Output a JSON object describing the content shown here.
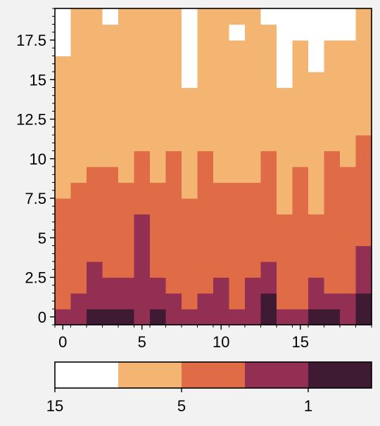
{
  "chart_data": {
    "type": "heatmap",
    "title": "",
    "xlabel": "",
    "ylabel": "",
    "xlim": [
      -0.5,
      19.5
    ],
    "ylim": [
      -0.5,
      19.5
    ],
    "x_ticks": [
      "0",
      "5",
      "10",
      "15"
    ],
    "y_ticks": [
      "0",
      "2.5",
      "5",
      "7.5",
      "10",
      "12.5",
      "15",
      "17.5"
    ],
    "level_colors": [
      "#3f1b33",
      "#922f53",
      "#df6b47",
      "#f4b572",
      "#ffffff"
    ],
    "colorbar": {
      "orientation": "horizontal",
      "segment_colors": [
        "#ffffff",
        "#f4b572",
        "#df6b47",
        "#922f53",
        "#3f1b33"
      ],
      "tick_labels": [
        "15",
        "5",
        "1"
      ]
    },
    "column_boundaries": [
      {
        "x": 0,
        "b": [
          0,
          1,
          8,
          17
        ]
      },
      {
        "x": 1,
        "b": [
          0,
          2,
          9,
          20
        ]
      },
      {
        "x": 2,
        "b": [
          1,
          4,
          10,
          20
        ]
      },
      {
        "x": 3,
        "b": [
          1,
          3,
          10,
          20
        ]
      },
      {
        "x": 4,
        "b": [
          1,
          3,
          9,
          20
        ]
      },
      {
        "x": 5,
        "b": [
          0,
          7,
          11,
          20
        ]
      },
      {
        "x": 6,
        "b": [
          1,
          3,
          9,
          20
        ]
      },
      {
        "x": 7,
        "b": [
          0,
          2,
          11,
          20
        ]
      },
      {
        "x": 8,
        "b": [
          0,
          1,
          8,
          15
        ]
      },
      {
        "x": 9,
        "b": [
          0,
          2,
          11,
          20
        ]
      },
      {
        "x": 10,
        "b": [
          0,
          3,
          9,
          20
        ]
      },
      {
        "x": 11,
        "b": [
          0,
          1,
          9,
          20
        ]
      },
      {
        "x": 12,
        "b": [
          0,
          3,
          9,
          20
        ]
      },
      {
        "x": 13,
        "b": [
          2,
          4,
          11,
          20
        ]
      },
      {
        "x": 14,
        "b": [
          0,
          1,
          7,
          15
        ]
      },
      {
        "x": 15,
        "b": [
          0,
          1,
          10,
          18
        ]
      },
      {
        "x": 16,
        "b": [
          1,
          3,
          7,
          16
        ]
      },
      {
        "x": 17,
        "b": [
          1,
          2,
          11,
          20
        ]
      },
      {
        "x": 18,
        "b": [
          0,
          2,
          10,
          18
        ]
      },
      {
        "x": 19,
        "b": [
          2,
          5,
          12,
          20
        ]
      }
    ],
    "white_cells": [
      [
        3,
        19
      ],
      [
        11,
        18
      ],
      [
        13,
        19
      ],
      [
        14,
        19
      ],
      [
        16,
        19
      ],
      [
        17,
        18
      ],
      [
        17,
        19
      ]
    ]
  }
}
